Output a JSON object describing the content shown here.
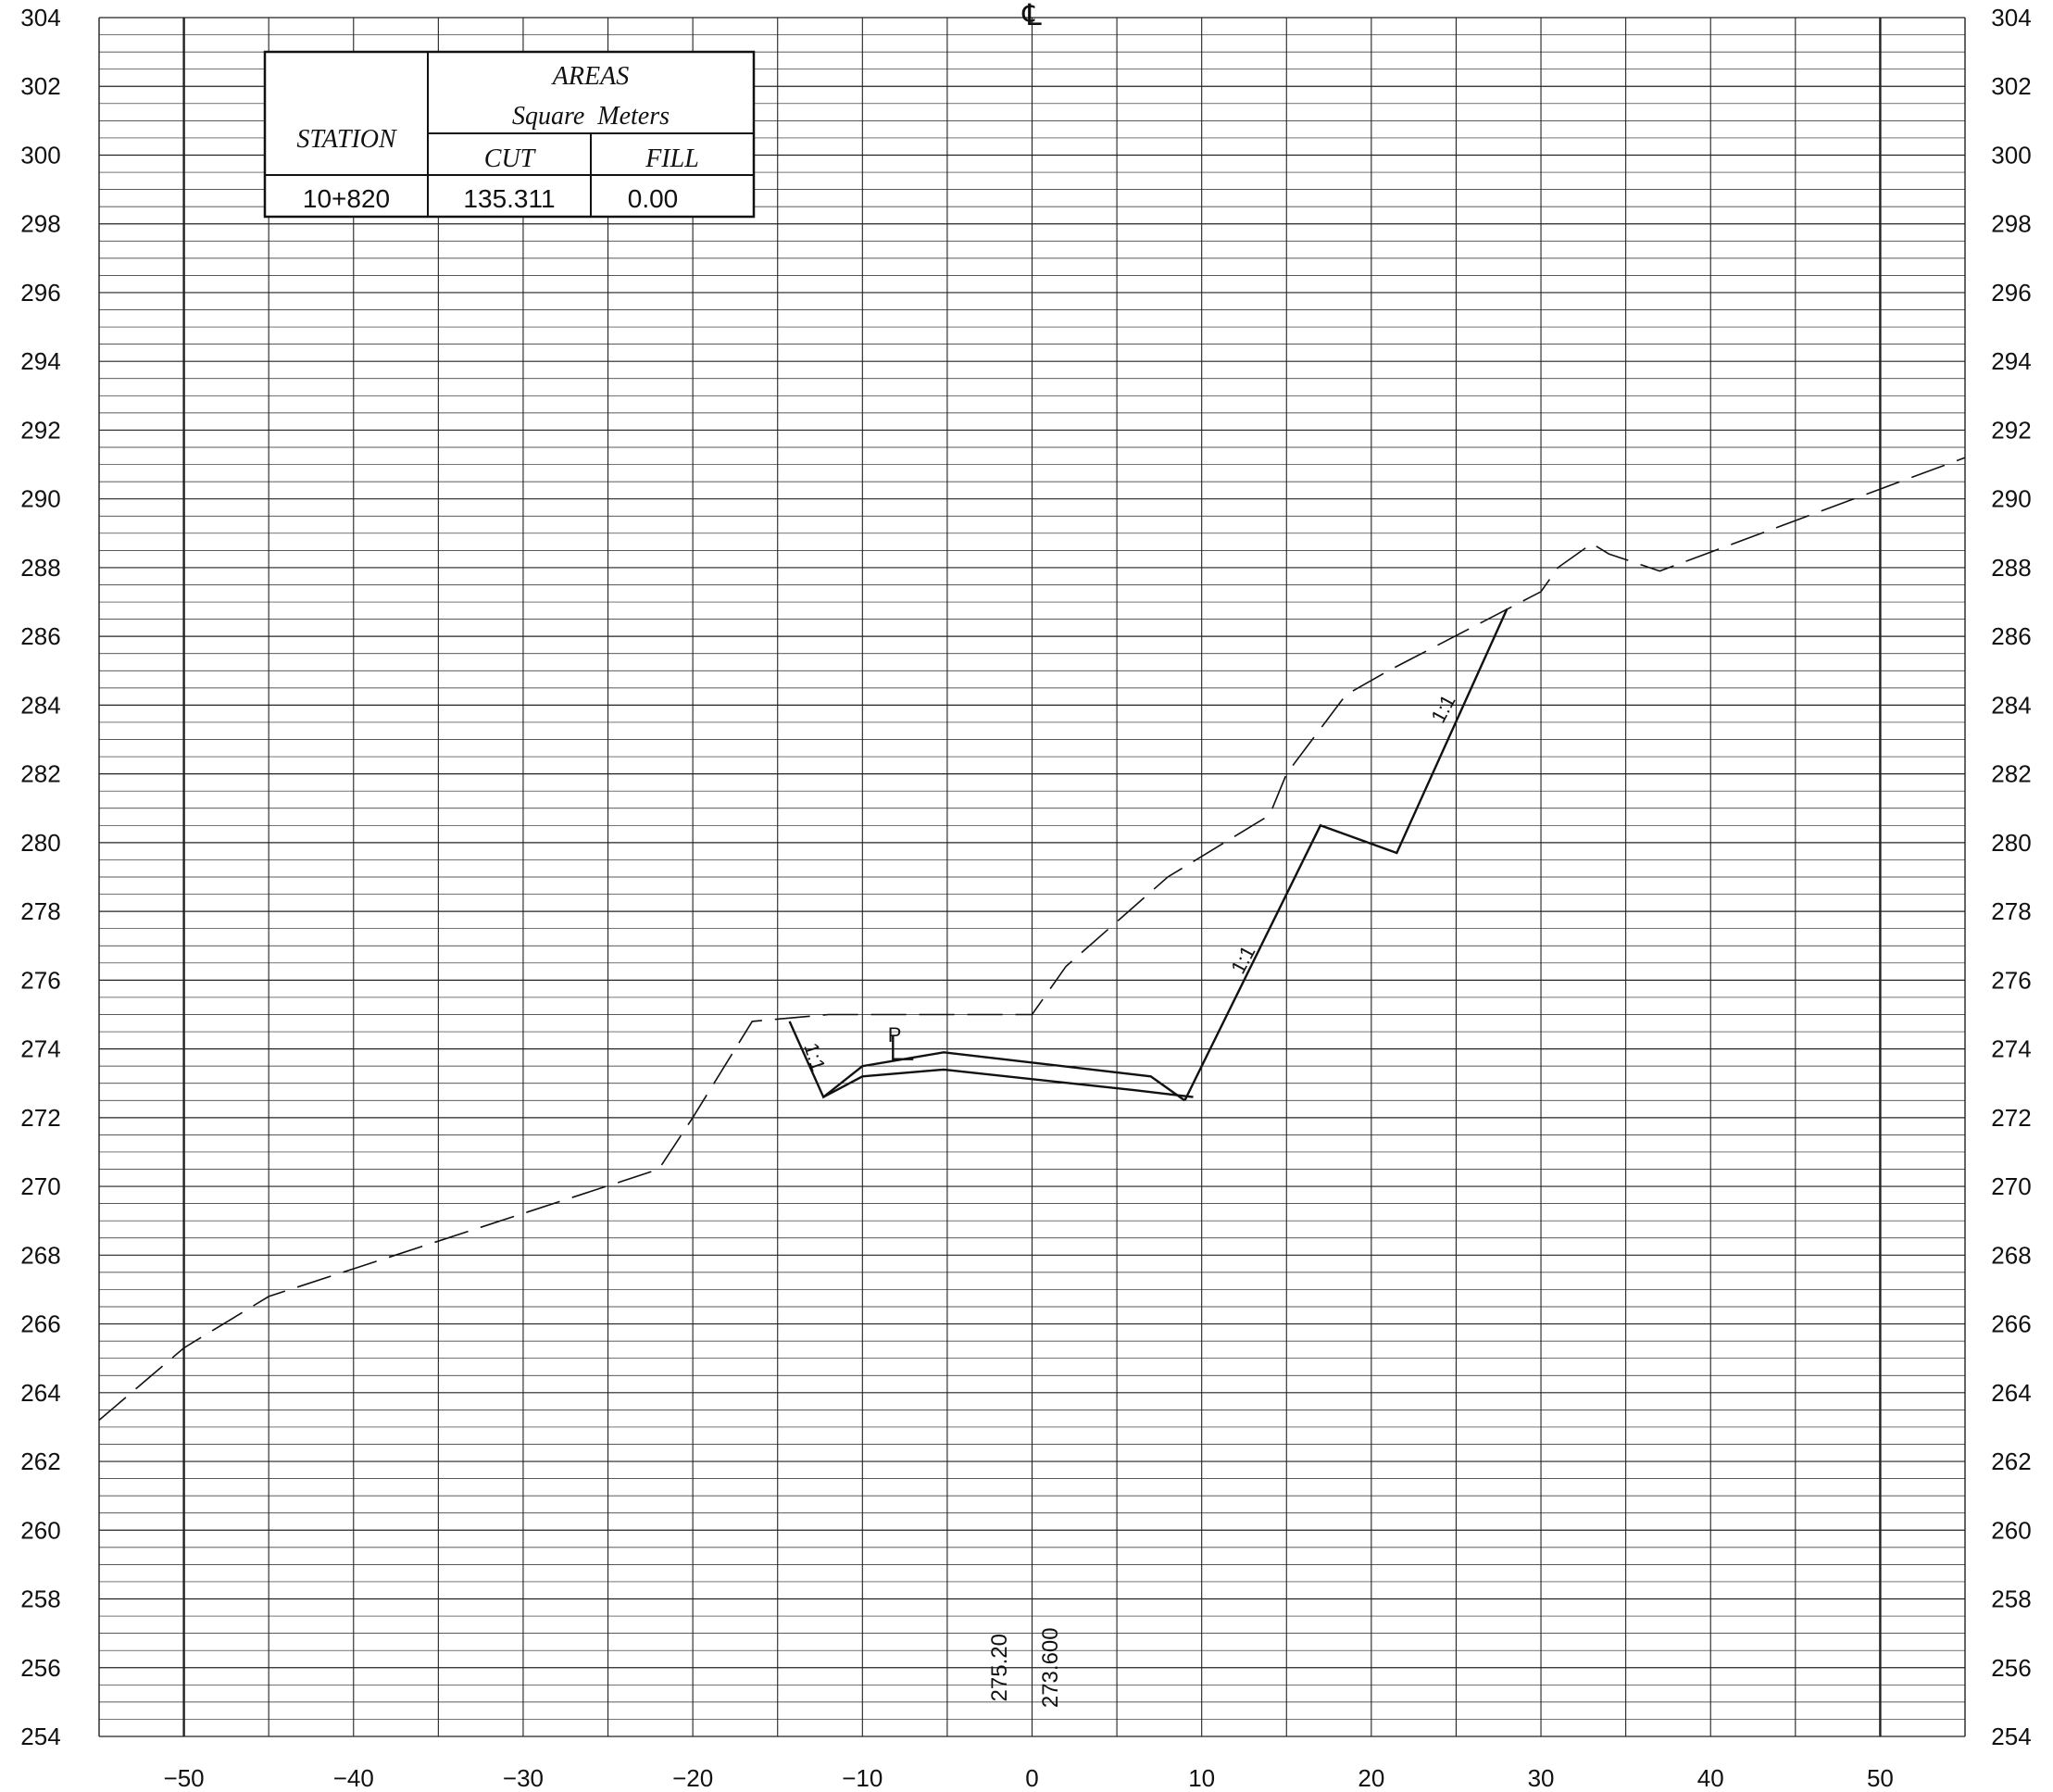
{
  "chart_data": {
    "type": "line",
    "x_ticks": [
      -50,
      -40,
      -30,
      -20,
      -10,
      0,
      10,
      20,
      30,
      40,
      50
    ],
    "x_tick_labels": [
      "−50",
      "−40",
      "−30",
      "−20",
      "−10",
      "0",
      "10",
      "20",
      "30",
      "40",
      "50"
    ],
    "y_ticks": [
      254,
      256,
      258,
      260,
      262,
      264,
      266,
      268,
      270,
      272,
      274,
      276,
      278,
      280,
      282,
      284,
      286,
      288,
      290,
      292,
      294,
      296,
      298,
      300,
      302,
      304
    ],
    "xlim": [
      -55,
      55
    ],
    "ylim": [
      254,
      304
    ],
    "grid": true,
    "centerline_symbol": "℄",
    "series": [
      {
        "style": "dashed",
        "x": [
          -55,
          -50,
          -45,
          -22,
          -20,
          -16.5,
          -12,
          -10,
          -5,
          0,
          2,
          8,
          14,
          15,
          18.5,
          21,
          30,
          31,
          33,
          34,
          37,
          55
        ],
        "y": [
          263.2,
          265.3,
          266.8,
          270.5,
          272.0,
          274.8,
          275.0,
          275.0,
          275.0,
          275.0,
          276.4,
          279.0,
          280.8,
          282.0,
          284.3,
          285.0,
          287.3,
          288.0,
          288.7,
          288.4,
          287.9,
          291.2
        ]
      },
      {
        "style": "solid",
        "x": [
          -14.3,
          -12.3,
          -10,
          -5.2,
          7,
          9
        ],
        "y": [
          274.8,
          272.6,
          273.5,
          273.9,
          273.2,
          272.5
        ]
      },
      {
        "style": "solid",
        "x": [
          -12.3,
          -10,
          -5.2,
          6,
          9.5
        ],
        "y": [
          272.6,
          273.2,
          273.4,
          272.8,
          272.6
        ]
      },
      {
        "style": "solid",
        "x": [
          9,
          17,
          21.5,
          28
        ],
        "y": [
          272.5,
          280.5,
          279.7,
          286.8
        ]
      },
      {
        "style": "solid",
        "x": [
          -8.2,
          -8.2,
          -7.0
        ],
        "y": [
          274.4,
          273.7,
          273.7
        ]
      }
    ],
    "annotations": [
      {
        "text": "1:1",
        "x": -13.2,
        "y": 273.7,
        "rotate": 72
      },
      {
        "text": "1:1",
        "x": 12.8,
        "y": 276.5,
        "rotate": -62
      },
      {
        "text": "1:1",
        "x": 24.6,
        "y": 283.8,
        "rotate": -62
      },
      {
        "text": "P",
        "x": -8.1,
        "y": 274.2,
        "rotate": 0
      }
    ],
    "elevation_labels": [
      {
        "text": "275.20",
        "x": -1.5,
        "y": 256.0
      },
      {
        "text": "273.600",
        "x": 1.5,
        "y": 256.0
      }
    ],
    "area_table": {
      "header_station": "STATION",
      "header_areas": "AREAS",
      "header_units": "Square  Meters",
      "header_cut": "CUT",
      "header_fill": "FILL",
      "station": "10+820",
      "cut": "135.311",
      "fill": "0.00"
    }
  }
}
